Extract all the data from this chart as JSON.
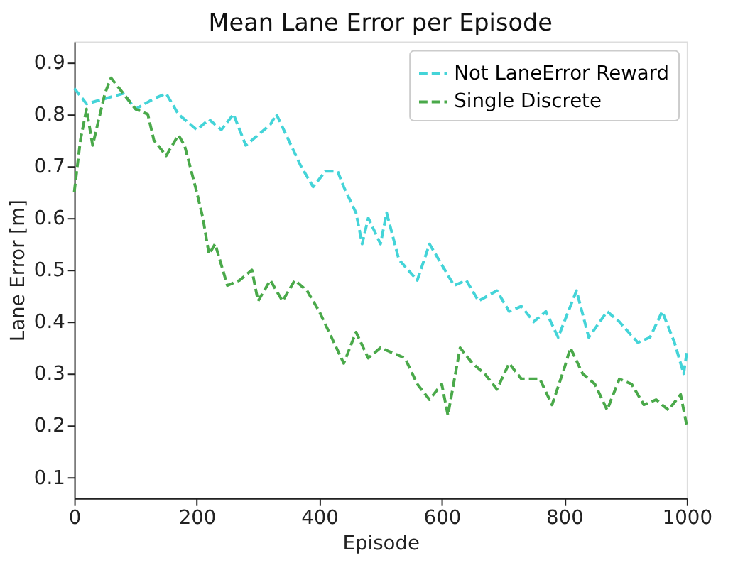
{
  "chart_data": {
    "type": "line",
    "title": "Mean Lane Error per Episode",
    "xlabel": "Episode",
    "ylabel": "Lane Error [m]",
    "xlim": [
      0,
      1000
    ],
    "xticks": [
      0,
      200,
      400,
      600,
      800,
      1000
    ],
    "ylim": [
      0.06,
      0.94
    ],
    "yticks": [
      0.1,
      0.2,
      0.3,
      0.4,
      0.5,
      0.6,
      0.7,
      0.8,
      0.9
    ],
    "grid": false,
    "legend": "top right",
    "line_style": "dashed",
    "marker": "none",
    "series": [
      {
        "name": "Not LaneError Reward",
        "color": "#44d4d8",
        "x": [
          0,
          20,
          50,
          80,
          100,
          130,
          150,
          170,
          200,
          220,
          240,
          260,
          280,
          300,
          320,
          330,
          350,
          370,
          390,
          410,
          430,
          440,
          460,
          470,
          480,
          500,
          510,
          530,
          560,
          580,
          600,
          620,
          640,
          660,
          690,
          710,
          730,
          750,
          770,
          790,
          810,
          820,
          840,
          870,
          890,
          920,
          940,
          960,
          980,
          995,
          1000
        ],
        "values": [
          0.85,
          0.82,
          0.83,
          0.84,
          0.81,
          0.83,
          0.84,
          0.8,
          0.77,
          0.79,
          0.77,
          0.8,
          0.74,
          0.76,
          0.78,
          0.8,
          0.75,
          0.7,
          0.66,
          0.69,
          0.69,
          0.66,
          0.61,
          0.55,
          0.6,
          0.55,
          0.61,
          0.52,
          0.48,
          0.55,
          0.51,
          0.47,
          0.48,
          0.44,
          0.46,
          0.42,
          0.43,
          0.4,
          0.42,
          0.37,
          0.43,
          0.46,
          0.37,
          0.42,
          0.4,
          0.36,
          0.37,
          0.42,
          0.36,
          0.3,
          0.34
        ]
      },
      {
        "name": "Single Discrete",
        "color": "#4aa94a",
        "x": [
          0,
          10,
          20,
          30,
          50,
          60,
          80,
          100,
          120,
          130,
          150,
          170,
          180,
          200,
          210,
          220,
          230,
          250,
          270,
          290,
          300,
          320,
          340,
          360,
          380,
          400,
          420,
          440,
          460,
          480,
          500,
          520,
          540,
          560,
          580,
          600,
          610,
          630,
          650,
          670,
          690,
          710,
          730,
          760,
          780,
          800,
          810,
          830,
          850,
          870,
          890,
          910,
          930,
          950,
          970,
          990,
          1000
        ],
        "values": [
          0.65,
          0.75,
          0.81,
          0.74,
          0.84,
          0.87,
          0.84,
          0.81,
          0.8,
          0.75,
          0.72,
          0.76,
          0.74,
          0.65,
          0.6,
          0.53,
          0.55,
          0.47,
          0.48,
          0.5,
          0.44,
          0.48,
          0.44,
          0.48,
          0.46,
          0.42,
          0.37,
          0.32,
          0.38,
          0.33,
          0.35,
          0.34,
          0.33,
          0.28,
          0.25,
          0.28,
          0.22,
          0.35,
          0.32,
          0.3,
          0.27,
          0.32,
          0.29,
          0.29,
          0.24,
          0.31,
          0.35,
          0.3,
          0.28,
          0.23,
          0.29,
          0.28,
          0.24,
          0.25,
          0.23,
          0.26,
          0.2
        ]
      }
    ]
  }
}
